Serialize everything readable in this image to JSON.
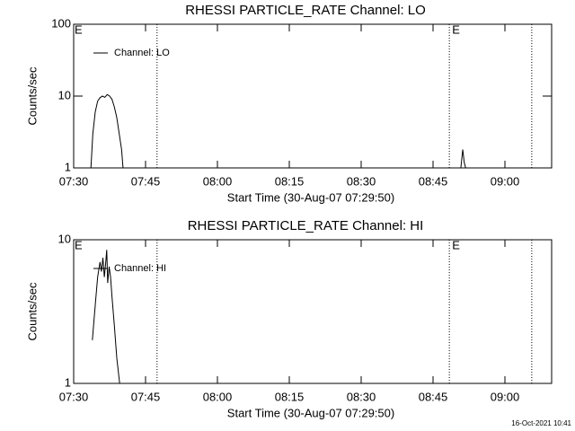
{
  "chart_data": [
    {
      "type": "line",
      "title": "RHESSI PARTICLE_RATE Channel: LO",
      "xlabel": "Start Time (30-Aug-07 07:29:50)",
      "ylabel": "Counts/sec",
      "log_y": true,
      "xlim": [
        0,
        99.75
      ],
      "ylim": [
        1,
        100
      ],
      "xticks": [
        {
          "value": 0,
          "label": "07:30"
        },
        {
          "value": 15,
          "label": "07:45"
        },
        {
          "value": 30,
          "label": "08:00"
        },
        {
          "value": 45,
          "label": "08:15"
        },
        {
          "value": 60,
          "label": "08:30"
        },
        {
          "value": 75,
          "label": "08:45"
        },
        {
          "value": 90,
          "label": "09:00"
        }
      ],
      "yticks": [
        1,
        10,
        100
      ],
      "vlines": [
        17.4,
        78.4,
        95.6
      ],
      "annotations": [
        {
          "text": "E",
          "x": 0
        },
        {
          "text": "E",
          "x": 78.8
        }
      ],
      "series": [
        {
          "name": "Channel: LO",
          "color": "#000000",
          "x": [
            3.6,
            4.0,
            4.5,
            5.0,
            5.5,
            6.0,
            6.5,
            7.0,
            7.5,
            8.0,
            8.5,
            9.0,
            9.5,
            10.0,
            10.3,
            45,
            80.8,
            81.2,
            81.5,
            81.8
          ],
          "values": [
            1,
            3,
            6,
            8.5,
            9.5,
            10,
            9.6,
            10.5,
            10,
            9,
            7,
            5,
            3,
            1.8,
            1,
            null,
            1,
            1.8,
            1.2,
            1
          ]
        }
      ]
    },
    {
      "type": "line",
      "title": "RHESSI PARTICLE_RATE Channel: HI",
      "xlabel": "Start Time (30-Aug-07 07:29:50)",
      "ylabel": "Counts/sec",
      "log_y": true,
      "xlim": [
        0,
        99.75
      ],
      "ylim": [
        1,
        10
      ],
      "xticks": [
        {
          "value": 0,
          "label": "07:30"
        },
        {
          "value": 15,
          "label": "07:45"
        },
        {
          "value": 30,
          "label": "08:00"
        },
        {
          "value": 45,
          "label": "08:15"
        },
        {
          "value": 60,
          "label": "08:30"
        },
        {
          "value": 75,
          "label": "08:45"
        },
        {
          "value": 90,
          "label": "09:00"
        }
      ],
      "yticks": [
        1,
        10
      ],
      "vlines": [
        17.4,
        78.4,
        95.6
      ],
      "annotations": [
        {
          "text": "E",
          "x": 0
        },
        {
          "text": "E",
          "x": 78.8
        }
      ],
      "series": [
        {
          "name": "Channel: HI",
          "color": "#000000",
          "x": [
            3.9,
            4.5,
            5.0,
            5.5,
            5.8,
            6.1,
            6.4,
            6.7,
            6.9,
            7.1,
            7.4,
            7.7,
            8.0,
            8.5,
            9.0,
            9.6
          ],
          "values": [
            2,
            3.5,
            5.5,
            7,
            6,
            7.5,
            5.5,
            7,
            8.5,
            5,
            6.5,
            5.5,
            4,
            2.5,
            1.5,
            1
          ]
        }
      ]
    }
  ],
  "footer": "16-Oct-2021 10:41"
}
